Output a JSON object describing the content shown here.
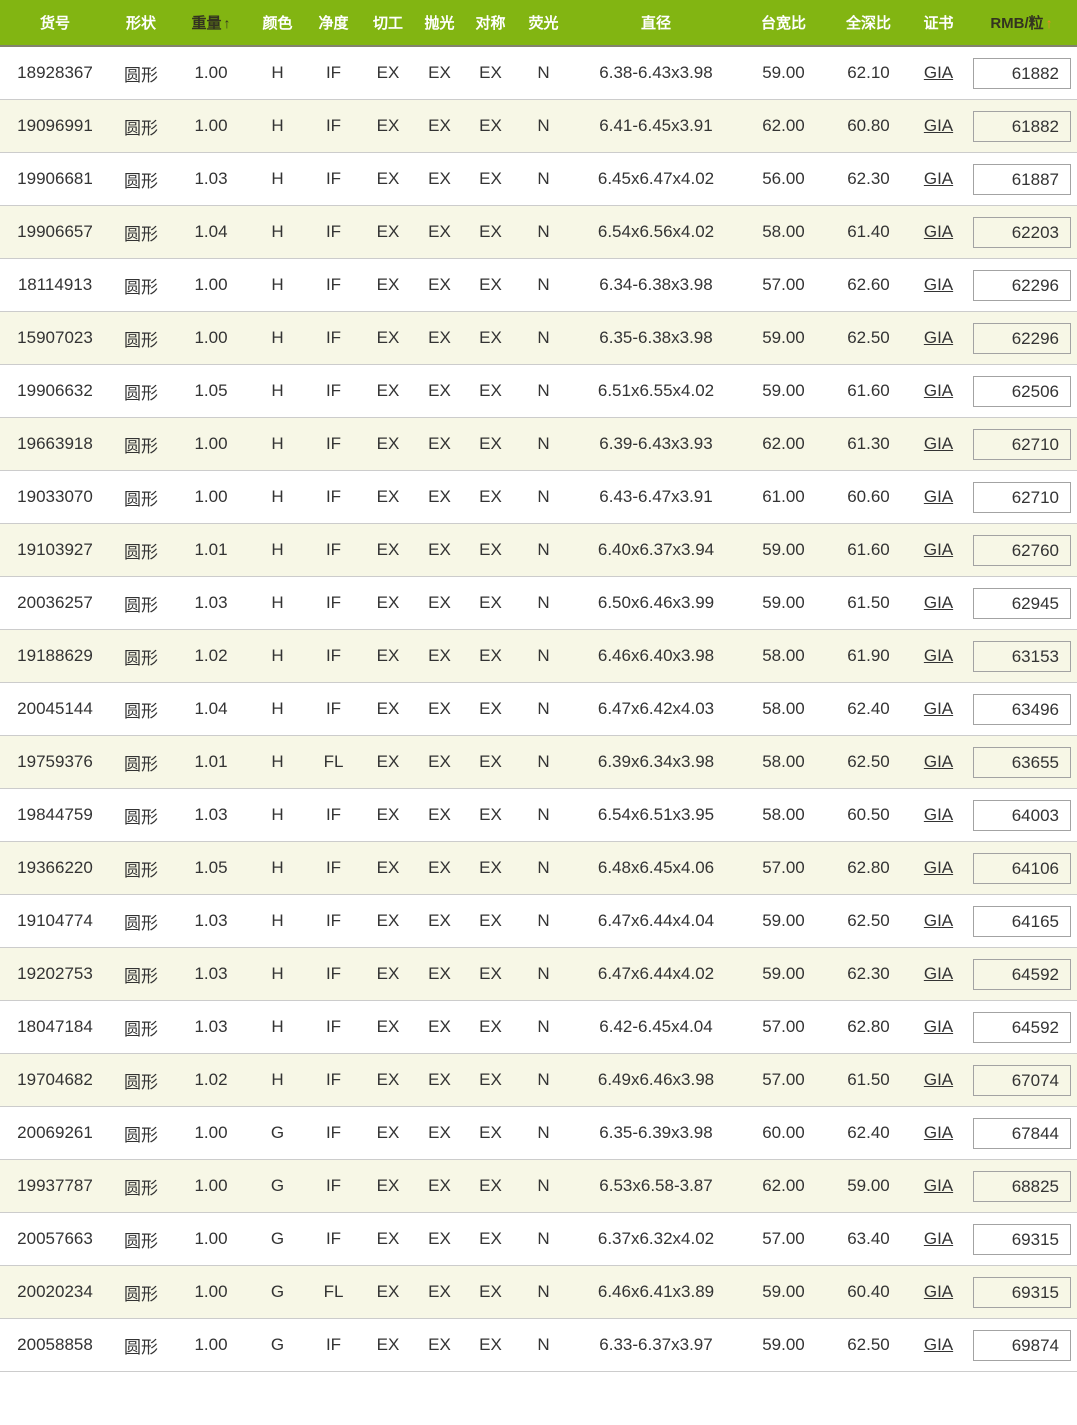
{
  "table": {
    "columns": [
      {
        "label": "货号"
      },
      {
        "label": "形状"
      },
      {
        "label": "重量",
        "arrow": "↑",
        "sorted": true
      },
      {
        "label": "颜色"
      },
      {
        "label": "净度"
      },
      {
        "label": "切工"
      },
      {
        "label": "抛光"
      },
      {
        "label": "对称"
      },
      {
        "label": "荧光"
      },
      {
        "label": "直径"
      },
      {
        "label": "台宽比"
      },
      {
        "label": "全深比"
      },
      {
        "label": "证书"
      },
      {
        "label": "RMB/粒",
        "arrow": "↑",
        "sorted": true
      }
    ],
    "rows": [
      [
        "18928367",
        "圆形",
        "1.00",
        "H",
        "IF",
        "EX",
        "EX",
        "EX",
        "N",
        "6.38-6.43x3.98",
        "59.00",
        "62.10",
        "GIA",
        "61882"
      ],
      [
        "19096991",
        "圆形",
        "1.00",
        "H",
        "IF",
        "EX",
        "EX",
        "EX",
        "N",
        "6.41-6.45x3.91",
        "62.00",
        "60.80",
        "GIA",
        "61882"
      ],
      [
        "19906681",
        "圆形",
        "1.03",
        "H",
        "IF",
        "EX",
        "EX",
        "EX",
        "N",
        "6.45x6.47x4.02",
        "56.00",
        "62.30",
        "GIA",
        "61887"
      ],
      [
        "19906657",
        "圆形",
        "1.04",
        "H",
        "IF",
        "EX",
        "EX",
        "EX",
        "N",
        "6.54x6.56x4.02",
        "58.00",
        "61.40",
        "GIA",
        "62203"
      ],
      [
        "18114913",
        "圆形",
        "1.00",
        "H",
        "IF",
        "EX",
        "EX",
        "EX",
        "N",
        "6.34-6.38x3.98",
        "57.00",
        "62.60",
        "GIA",
        "62296"
      ],
      [
        "15907023",
        "圆形",
        "1.00",
        "H",
        "IF",
        "EX",
        "EX",
        "EX",
        "N",
        "6.35-6.38x3.98",
        "59.00",
        "62.50",
        "GIA",
        "62296"
      ],
      [
        "19906632",
        "圆形",
        "1.05",
        "H",
        "IF",
        "EX",
        "EX",
        "EX",
        "N",
        "6.51x6.55x4.02",
        "59.00",
        "61.60",
        "GIA",
        "62506"
      ],
      [
        "19663918",
        "圆形",
        "1.00",
        "H",
        "IF",
        "EX",
        "EX",
        "EX",
        "N",
        "6.39-6.43x3.93",
        "62.00",
        "61.30",
        "GIA",
        "62710"
      ],
      [
        "19033070",
        "圆形",
        "1.00",
        "H",
        "IF",
        "EX",
        "EX",
        "EX",
        "N",
        "6.43-6.47x3.91",
        "61.00",
        "60.60",
        "GIA",
        "62710"
      ],
      [
        "19103927",
        "圆形",
        "1.01",
        "H",
        "IF",
        "EX",
        "EX",
        "EX",
        "N",
        "6.40x6.37x3.94",
        "59.00",
        "61.60",
        "GIA",
        "62760"
      ],
      [
        "20036257",
        "圆形",
        "1.03",
        "H",
        "IF",
        "EX",
        "EX",
        "EX",
        "N",
        "6.50x6.46x3.99",
        "59.00",
        "61.50",
        "GIA",
        "62945"
      ],
      [
        "19188629",
        "圆形",
        "1.02",
        "H",
        "IF",
        "EX",
        "EX",
        "EX",
        "N",
        "6.46x6.40x3.98",
        "58.00",
        "61.90",
        "GIA",
        "63153"
      ],
      [
        "20045144",
        "圆形",
        "1.04",
        "H",
        "IF",
        "EX",
        "EX",
        "EX",
        "N",
        "6.47x6.42x4.03",
        "58.00",
        "62.40",
        "GIA",
        "63496"
      ],
      [
        "19759376",
        "圆形",
        "1.01",
        "H",
        "FL",
        "EX",
        "EX",
        "EX",
        "N",
        "6.39x6.34x3.98",
        "58.00",
        "62.50",
        "GIA",
        "63655"
      ],
      [
        "19844759",
        "圆形",
        "1.03",
        "H",
        "IF",
        "EX",
        "EX",
        "EX",
        "N",
        "6.54x6.51x3.95",
        "58.00",
        "60.50",
        "GIA",
        "64003"
      ],
      [
        "19366220",
        "圆形",
        "1.05",
        "H",
        "IF",
        "EX",
        "EX",
        "EX",
        "N",
        "6.48x6.45x4.06",
        "57.00",
        "62.80",
        "GIA",
        "64106"
      ],
      [
        "19104774",
        "圆形",
        "1.03",
        "H",
        "IF",
        "EX",
        "EX",
        "EX",
        "N",
        "6.47x6.44x4.04",
        "59.00",
        "62.50",
        "GIA",
        "64165"
      ],
      [
        "19202753",
        "圆形",
        "1.03",
        "H",
        "IF",
        "EX",
        "EX",
        "EX",
        "N",
        "6.47x6.44x4.02",
        "59.00",
        "62.30",
        "GIA",
        "64592"
      ],
      [
        "18047184",
        "圆形",
        "1.03",
        "H",
        "IF",
        "EX",
        "EX",
        "EX",
        "N",
        "6.42-6.45x4.04",
        "57.00",
        "62.80",
        "GIA",
        "64592"
      ],
      [
        "19704682",
        "圆形",
        "1.02",
        "H",
        "IF",
        "EX",
        "EX",
        "EX",
        "N",
        "6.49x6.46x3.98",
        "57.00",
        "61.50",
        "GIA",
        "67074"
      ],
      [
        "20069261",
        "圆形",
        "1.00",
        "G",
        "IF",
        "EX",
        "EX",
        "EX",
        "N",
        "6.35-6.39x3.98",
        "60.00",
        "62.40",
        "GIA",
        "67844"
      ],
      [
        "19937787",
        "圆形",
        "1.00",
        "G",
        "IF",
        "EX",
        "EX",
        "EX",
        "N",
        "6.53x6.58-3.87",
        "62.00",
        "59.00",
        "GIA",
        "68825"
      ],
      [
        "20057663",
        "圆形",
        "1.00",
        "G",
        "IF",
        "EX",
        "EX",
        "EX",
        "N",
        "6.37x6.32x4.02",
        "57.00",
        "63.40",
        "GIA",
        "69315"
      ],
      [
        "20020234",
        "圆形",
        "1.00",
        "G",
        "FL",
        "EX",
        "EX",
        "EX",
        "N",
        "6.46x6.41x3.89",
        "59.00",
        "60.40",
        "GIA",
        "69315"
      ],
      [
        "20058858",
        "圆形",
        "1.00",
        "G",
        "IF",
        "EX",
        "EX",
        "EX",
        "N",
        "6.33-6.37x3.97",
        "59.00",
        "62.50",
        "GIA",
        "69874"
      ]
    ],
    "cert_link_label": "GIA"
  },
  "colors": {
    "header_bg": "#82b512",
    "header_text": "#ffffff",
    "sorted_header_text": "#333320",
    "sort_arrow_orange": "#f68428",
    "row_alt_bg": "#f7f7e6",
    "row_border": "#cccccc",
    "body_text": "#333333",
    "price_box_border": "#a3a3a3"
  }
}
